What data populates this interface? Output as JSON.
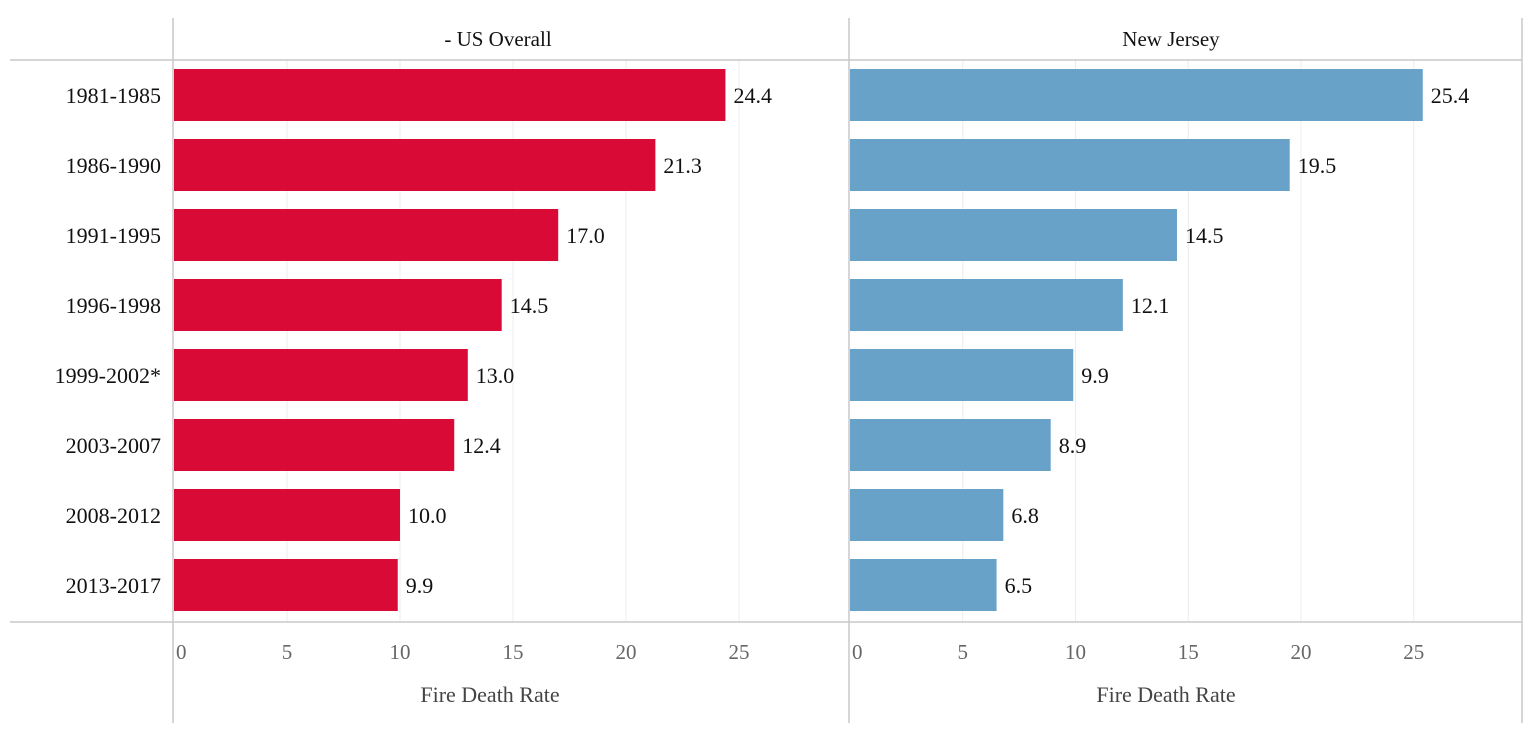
{
  "chart_data": {
    "type": "bar",
    "orientation": "horizontal",
    "categories": [
      "1981-1985",
      "1986-1990",
      "1991-1995",
      "1996-1998",
      "1999-2002*",
      "2003-2007",
      "2008-2012",
      "2013-2017"
    ],
    "series": [
      {
        "name": "- US Overall",
        "color": "#d90b36",
        "values": [
          24.4,
          21.3,
          17.0,
          14.5,
          13.0,
          12.4,
          10.0,
          9.9
        ],
        "value_labels": [
          "24.4",
          "21.3",
          "17.0",
          "14.5",
          "13.0",
          "12.4",
          "10.0",
          "9.9"
        ]
      },
      {
        "name": "New Jersey",
        "color": "#68a2c8",
        "values": [
          25.4,
          19.5,
          14.5,
          12.1,
          9.9,
          8.9,
          6.8,
          6.5
        ],
        "value_labels": [
          "25.4",
          "19.5",
          "14.5",
          "12.1",
          "9.9",
          "8.9",
          "6.8",
          "6.5"
        ]
      }
    ],
    "xlabel": "Fire Death Rate",
    "xlim": [
      0,
      30
    ],
    "xticks": [
      0,
      5,
      10,
      15,
      20,
      25
    ],
    "grid": true,
    "legend": "none"
  }
}
